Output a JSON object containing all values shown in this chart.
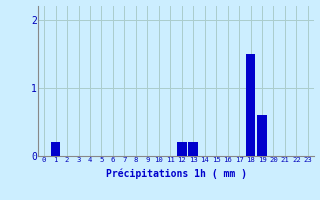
{
  "hours": [
    0,
    1,
    2,
    3,
    4,
    5,
    6,
    7,
    8,
    9,
    10,
    11,
    12,
    13,
    14,
    15,
    16,
    17,
    18,
    19,
    20,
    21,
    22,
    23
  ],
  "values": [
    0,
    0.2,
    0,
    0,
    0,
    0,
    0,
    0,
    0,
    0,
    0,
    0,
    0.2,
    0.2,
    0,
    0,
    0,
    0,
    1.5,
    0.6,
    0,
    0,
    0,
    0
  ],
  "bar_color": "#0000cc",
  "background_color": "#cceeff",
  "grid_color": "#aacccc",
  "tick_color": "#0000bb",
  "xlabel": "Précipitations 1h ( mm )",
  "xlabel_color": "#0000cc",
  "ylim": [
    0,
    2.2
  ],
  "yticks": [
    0,
    1,
    2
  ],
  "xlim": [
    -0.5,
    23.5
  ],
  "bar_width": 0.85,
  "figsize": [
    3.2,
    2.0
  ],
  "dpi": 100
}
